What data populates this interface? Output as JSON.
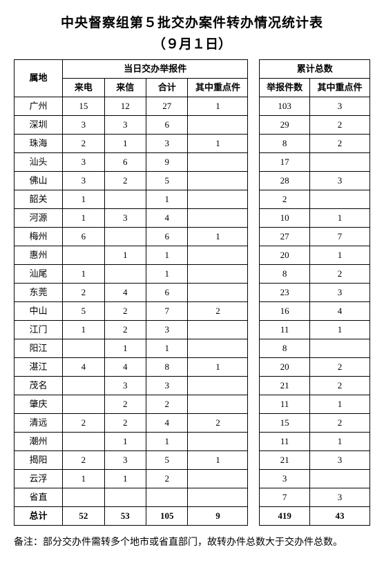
{
  "title": "中央督察组第５批交办案件转办情况统计表",
  "subtitle": "（９月１日）",
  "columns": {
    "region": "属地",
    "daily_group": "当日交办举报件",
    "total_group": "累计总数",
    "calls": "来电",
    "letters": "来信",
    "sum": "合计",
    "key_daily": "其中重点件",
    "reports": "举报件数",
    "key_total": "其中重点件"
  },
  "rows": [
    {
      "region": "广州",
      "calls": "15",
      "letters": "12",
      "sum": "27",
      "key_daily": "1",
      "reports": "103",
      "key_total": "3"
    },
    {
      "region": "深圳",
      "calls": "3",
      "letters": "3",
      "sum": "6",
      "key_daily": "",
      "reports": "29",
      "key_total": "2"
    },
    {
      "region": "珠海",
      "calls": "2",
      "letters": "1",
      "sum": "3",
      "key_daily": "1",
      "reports": "8",
      "key_total": "2"
    },
    {
      "region": "汕头",
      "calls": "3",
      "letters": "6",
      "sum": "9",
      "key_daily": "",
      "reports": "17",
      "key_total": ""
    },
    {
      "region": "佛山",
      "calls": "3",
      "letters": "2",
      "sum": "5",
      "key_daily": "",
      "reports": "28",
      "key_total": "3"
    },
    {
      "region": "韶关",
      "calls": "1",
      "letters": "",
      "sum": "1",
      "key_daily": "",
      "reports": "2",
      "key_total": ""
    },
    {
      "region": "河源",
      "calls": "1",
      "letters": "3",
      "sum": "4",
      "key_daily": "",
      "reports": "10",
      "key_total": "1"
    },
    {
      "region": "梅州",
      "calls": "6",
      "letters": "",
      "sum": "6",
      "key_daily": "1",
      "reports": "27",
      "key_total": "7"
    },
    {
      "region": "惠州",
      "calls": "",
      "letters": "1",
      "sum": "1",
      "key_daily": "",
      "reports": "20",
      "key_total": "1"
    },
    {
      "region": "汕尾",
      "calls": "1",
      "letters": "",
      "sum": "1",
      "key_daily": "",
      "reports": "8",
      "key_total": "2"
    },
    {
      "region": "东莞",
      "calls": "2",
      "letters": "4",
      "sum": "6",
      "key_daily": "",
      "reports": "23",
      "key_total": "3"
    },
    {
      "region": "中山",
      "calls": "5",
      "letters": "2",
      "sum": "7",
      "key_daily": "2",
      "reports": "16",
      "key_total": "4"
    },
    {
      "region": "江门",
      "calls": "1",
      "letters": "2",
      "sum": "3",
      "key_daily": "",
      "reports": "11",
      "key_total": "1"
    },
    {
      "region": "阳江",
      "calls": "",
      "letters": "1",
      "sum": "1",
      "key_daily": "",
      "reports": "8",
      "key_total": ""
    },
    {
      "region": "湛江",
      "calls": "4",
      "letters": "4",
      "sum": "8",
      "key_daily": "1",
      "reports": "20",
      "key_total": "2"
    },
    {
      "region": "茂名",
      "calls": "",
      "letters": "3",
      "sum": "3",
      "key_daily": "",
      "reports": "21",
      "key_total": "2"
    },
    {
      "region": "肇庆",
      "calls": "",
      "letters": "2",
      "sum": "2",
      "key_daily": "",
      "reports": "11",
      "key_total": "1"
    },
    {
      "region": "清远",
      "calls": "2",
      "letters": "2",
      "sum": "4",
      "key_daily": "2",
      "reports": "15",
      "key_total": "2"
    },
    {
      "region": "潮州",
      "calls": "",
      "letters": "1",
      "sum": "1",
      "key_daily": "",
      "reports": "11",
      "key_total": "1"
    },
    {
      "region": "揭阳",
      "calls": "2",
      "letters": "3",
      "sum": "5",
      "key_daily": "1",
      "reports": "21",
      "key_total": "3"
    },
    {
      "region": "云浮",
      "calls": "1",
      "letters": "1",
      "sum": "2",
      "key_daily": "",
      "reports": "3",
      "key_total": ""
    },
    {
      "region": "省直",
      "calls": "",
      "letters": "",
      "sum": "",
      "key_daily": "",
      "reports": "7",
      "key_total": "3"
    }
  ],
  "total": {
    "region": "总计",
    "calls": "52",
    "letters": "53",
    "sum": "105",
    "key_daily": "9",
    "reports": "419",
    "key_total": "43"
  },
  "footnote": "备注：部分交办件需转多个地市或省直部门，故转办件总数大于交办件总数。"
}
